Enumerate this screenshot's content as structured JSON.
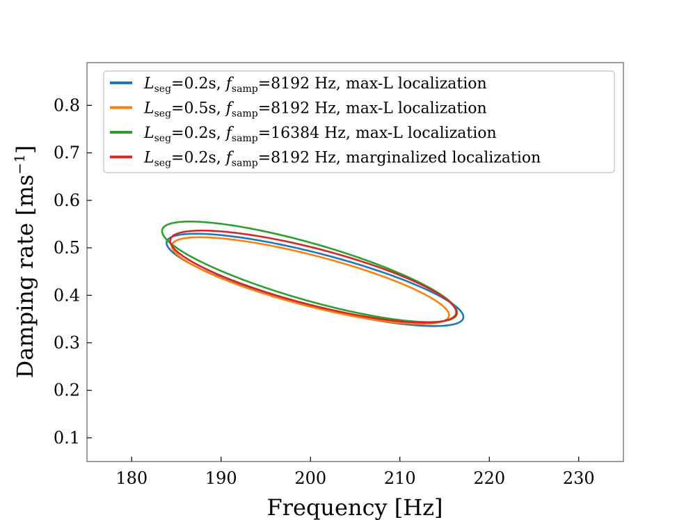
{
  "chart_data": {
    "type": "line",
    "title": "",
    "xlabel": "Frequency [Hz]",
    "ylabel_text": "Damping rate [ms",
    "ylabel_sup": "−1",
    "ylabel_close": "]",
    "xlim": [
      175,
      235
    ],
    "ylim": [
      0.05,
      0.89
    ],
    "xticks": [
      180,
      190,
      200,
      210,
      220,
      230
    ],
    "xtick_labels": [
      "180",
      "190",
      "200",
      "210",
      "220",
      "230"
    ],
    "yticks": [
      0.1,
      0.2,
      0.3,
      0.4,
      0.5,
      0.6,
      0.7,
      0.8
    ],
    "ytick_labels": [
      "0.1",
      "0.2",
      "0.3",
      "0.4",
      "0.5",
      "0.6",
      "0.7",
      "0.8"
    ],
    "legend_position": "top-left",
    "series": [
      {
        "name": "Lseg=0.2s, fsamp=8192 Hz, max-L localization",
        "L_sub": "seg",
        "L_val": "=0.2s, ",
        "f_sub": "samp",
        "f_val": "=8192 Hz, ",
        "suffix": "max-L localization",
        "color": "#1f77b4",
        "ellipse": {
          "cx": 200.5,
          "cy": 0.4325,
          "a": 16.6,
          "b": 0.058,
          "tilt": -0.0047
        }
      },
      {
        "name": "Lseg=0.5s, fsamp=8192 Hz, max-L localization",
        "L_sub": "seg",
        "L_val": "=0.5s, ",
        "f_sub": "samp",
        "f_val": "=8192 Hz, ",
        "suffix": "max-L localization",
        "color": "#ff7f0e",
        "ellipse": {
          "cx": 200.0,
          "cy": 0.431,
          "a": 15.5,
          "b": 0.055,
          "tilt": -0.0047
        }
      },
      {
        "name": "Lseg=0.2s, fsamp=16384 Hz, max-L localization",
        "L_sub": "seg",
        "L_val": "=0.2s, ",
        "f_sub": "samp",
        "f_val": "=16384 Hz, ",
        "suffix": "max-L localization",
        "color": "#2ca02c",
        "ellipse": {
          "cx": 199.9,
          "cy": 0.4495,
          "a": 16.5,
          "b": 0.062,
          "tilt": -0.0052
        }
      },
      {
        "name": "Lseg=0.2s, fsamp=8192 Hz, marginalized localization",
        "L_sub": "seg",
        "L_val": "=0.2s, ",
        "f_sub": "samp",
        "f_val": "=8192 Hz, ",
        "suffix": "marginalized localization",
        "color": "#d62728",
        "ellipse": {
          "cx": 200.3,
          "cy": 0.4395,
          "a": 16.0,
          "b": 0.061,
          "tilt": -0.0047
        }
      }
    ]
  }
}
